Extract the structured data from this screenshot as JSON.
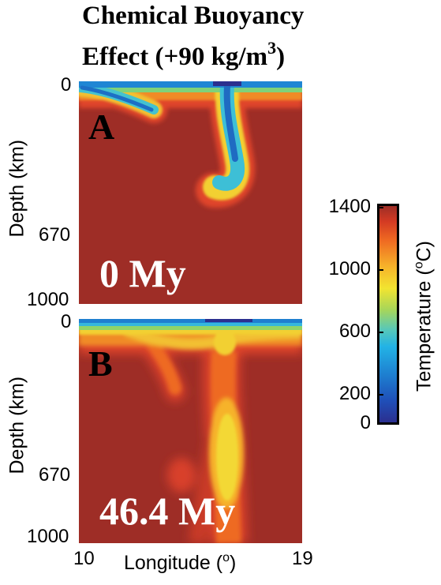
{
  "title": {
    "line1": "Chemical Buoyancy",
    "line2_prefix": "Effect (+90 kg/m",
    "line2_sup": "3",
    "line2_suffix": ")"
  },
  "panels": [
    {
      "label": "A",
      "time": "0 My",
      "y_axis_label": "Depth (km)",
      "y_ticks": [
        "0",
        "670",
        "1000"
      ]
    },
    {
      "label": "B",
      "time": "46.4 My",
      "y_axis_label": "Depth (km)",
      "y_ticks": [
        "0",
        "670",
        "1000"
      ]
    }
  ],
  "x_axis": {
    "label_prefix": "Longitude (",
    "label_sup": "o",
    "label_suffix": ")",
    "ticks": [
      "10",
      "19"
    ]
  },
  "colorbar": {
    "label_prefix": "Temperature (",
    "label_sup": "o",
    "label_suffix": "C)",
    "ticks": [
      "1400",
      "1000",
      "600",
      "200",
      "0"
    ],
    "colors": [
      "#2b2f8f",
      "#1e7fd0",
      "#22b3e6",
      "#a6d65a",
      "#f2e430",
      "#ef6a22",
      "#9e2d26"
    ]
  }
}
